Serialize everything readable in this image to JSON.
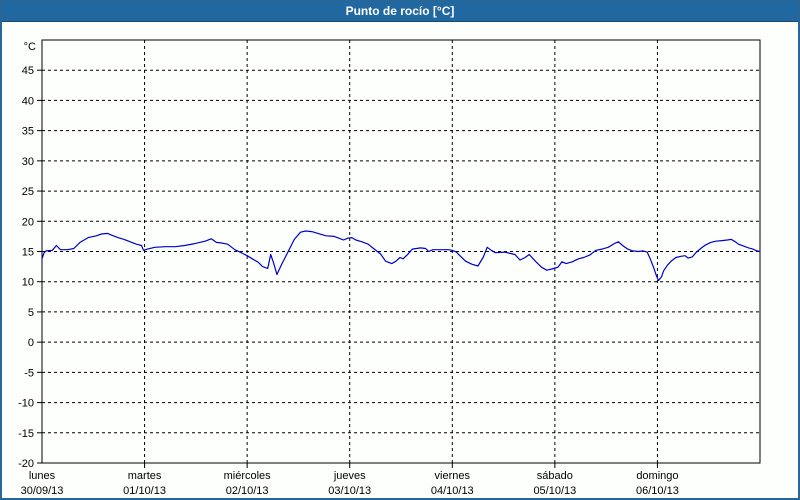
{
  "window": {
    "title": "Punto de rocío [°C]"
  },
  "colors": {
    "titlebar_bg": "#2168a0",
    "titlebar_text": "#ffffff",
    "outer_border": "#266699",
    "background": "#fdfffd",
    "grid": "#000000",
    "axis": "#000000",
    "line": "#0000c8",
    "label": "#000000"
  },
  "chart_data": {
    "type": "line",
    "title": "Punto de rocío [°C]",
    "unit_label": "°C",
    "ylim": [
      -20,
      50
    ],
    "y_ticks": [
      45,
      40,
      35,
      30,
      25,
      20,
      15,
      10,
      5,
      0,
      -5,
      -10,
      -15,
      -20
    ],
    "grid": true,
    "legend_position": "none",
    "x_days": [
      {
        "name": "lunes",
        "date": "30/09/13"
      },
      {
        "name": "martes",
        "date": "01/10/13"
      },
      {
        "name": "miércoles",
        "date": "02/10/13"
      },
      {
        "name": "jueves",
        "date": "03/10/13"
      },
      {
        "name": "viernes",
        "date": "04/10/13"
      },
      {
        "name": "sábado",
        "date": "05/10/13"
      },
      {
        "name": "domingo",
        "date": "06/10/13"
      }
    ],
    "xlim_days": [
      0,
      7
    ],
    "series": [
      {
        "name": "Punto de rocío",
        "color": "#0000c8",
        "points": [
          [
            0.0,
            13.8
          ],
          [
            0.02,
            14.8
          ],
          [
            0.04,
            15.1
          ],
          [
            0.1,
            15.2
          ],
          [
            0.14,
            16.0
          ],
          [
            0.18,
            15.3
          ],
          [
            0.25,
            15.3
          ],
          [
            0.31,
            15.5
          ],
          [
            0.37,
            16.5
          ],
          [
            0.45,
            17.3
          ],
          [
            0.53,
            17.6
          ],
          [
            0.58,
            17.9
          ],
          [
            0.64,
            18.0
          ],
          [
            0.68,
            17.7
          ],
          [
            0.74,
            17.3
          ],
          [
            0.8,
            17.0
          ],
          [
            0.86,
            16.6
          ],
          [
            0.92,
            16.2
          ],
          [
            0.97,
            16.0
          ],
          [
            0.99,
            15.2
          ],
          [
            1.03,
            15.4
          ],
          [
            1.1,
            15.7
          ],
          [
            1.2,
            15.8
          ],
          [
            1.3,
            15.8
          ],
          [
            1.39,
            16.0
          ],
          [
            1.49,
            16.3
          ],
          [
            1.59,
            16.7
          ],
          [
            1.65,
            17.1
          ],
          [
            1.7,
            16.5
          ],
          [
            1.75,
            16.4
          ],
          [
            1.81,
            16.2
          ],
          [
            1.88,
            15.3
          ],
          [
            1.93,
            14.9
          ],
          [
            2.0,
            14.3
          ],
          [
            2.05,
            13.8
          ],
          [
            2.11,
            13.2
          ],
          [
            2.15,
            12.5
          ],
          [
            2.2,
            12.2
          ],
          [
            2.23,
            14.5
          ],
          [
            2.26,
            13.0
          ],
          [
            2.29,
            11.2
          ],
          [
            2.34,
            13.0
          ],
          [
            2.4,
            15.0
          ],
          [
            2.46,
            17.0
          ],
          [
            2.52,
            18.2
          ],
          [
            2.57,
            18.4
          ],
          [
            2.63,
            18.3
          ],
          [
            2.69,
            18.0
          ],
          [
            2.77,
            17.6
          ],
          [
            2.85,
            17.5
          ],
          [
            2.91,
            17.1
          ],
          [
            2.94,
            16.9
          ],
          [
            2.98,
            17.2
          ],
          [
            3.02,
            17.3
          ],
          [
            3.06,
            16.9
          ],
          [
            3.12,
            16.6
          ],
          [
            3.18,
            16.2
          ],
          [
            3.24,
            15.4
          ],
          [
            3.3,
            14.6
          ],
          [
            3.35,
            13.4
          ],
          [
            3.41,
            13.0
          ],
          [
            3.45,
            13.4
          ],
          [
            3.49,
            14.0
          ],
          [
            3.52,
            13.8
          ],
          [
            3.57,
            14.6
          ],
          [
            3.61,
            15.4
          ],
          [
            3.69,
            15.6
          ],
          [
            3.74,
            15.5
          ],
          [
            3.77,
            15.0
          ],
          [
            3.81,
            15.3
          ],
          [
            3.88,
            15.3
          ],
          [
            3.96,
            15.3
          ],
          [
            4.0,
            15.2
          ],
          [
            4.04,
            14.9
          ],
          [
            4.08,
            14.2
          ],
          [
            4.13,
            13.4
          ],
          [
            4.19,
            12.9
          ],
          [
            4.25,
            12.6
          ],
          [
            4.3,
            14.0
          ],
          [
            4.34,
            15.7
          ],
          [
            4.38,
            15.2
          ],
          [
            4.42,
            14.8
          ],
          [
            4.51,
            14.9
          ],
          [
            4.61,
            14.5
          ],
          [
            4.66,
            13.6
          ],
          [
            4.71,
            14.0
          ],
          [
            4.75,
            14.5
          ],
          [
            4.81,
            13.4
          ],
          [
            4.87,
            12.4
          ],
          [
            4.92,
            11.9
          ],
          [
            4.97,
            12.1
          ],
          [
            5.03,
            12.4
          ],
          [
            5.07,
            13.3
          ],
          [
            5.11,
            13.0
          ],
          [
            5.17,
            13.3
          ],
          [
            5.23,
            13.8
          ],
          [
            5.28,
            14.0
          ],
          [
            5.34,
            14.4
          ],
          [
            5.4,
            15.2
          ],
          [
            5.46,
            15.4
          ],
          [
            5.52,
            15.7
          ],
          [
            5.58,
            16.3
          ],
          [
            5.62,
            16.6
          ],
          [
            5.66,
            16.0
          ],
          [
            5.71,
            15.4
          ],
          [
            5.76,
            15.1
          ],
          [
            5.81,
            15.0
          ],
          [
            5.86,
            15.1
          ],
          [
            5.9,
            14.9
          ],
          [
            5.93,
            13.8
          ],
          [
            5.96,
            12.5
          ],
          [
            5.99,
            11.0
          ],
          [
            6.01,
            10.2
          ],
          [
            6.04,
            10.8
          ],
          [
            6.06,
            11.8
          ],
          [
            6.1,
            12.8
          ],
          [
            6.14,
            13.5
          ],
          [
            6.18,
            14.0
          ],
          [
            6.23,
            14.2
          ],
          [
            6.27,
            14.3
          ],
          [
            6.3,
            13.9
          ],
          [
            6.34,
            14.1
          ],
          [
            6.38,
            14.9
          ],
          [
            6.43,
            15.6
          ],
          [
            6.47,
            16.1
          ],
          [
            6.52,
            16.5
          ],
          [
            6.57,
            16.7
          ],
          [
            6.63,
            16.8
          ],
          [
            6.68,
            16.9
          ],
          [
            6.72,
            17.0
          ],
          [
            6.76,
            16.6
          ],
          [
            6.79,
            16.2
          ],
          [
            6.84,
            15.9
          ],
          [
            6.89,
            15.6
          ],
          [
            6.93,
            15.4
          ],
          [
            6.97,
            15.1
          ],
          [
            7.0,
            15.0
          ]
        ]
      }
    ]
  }
}
